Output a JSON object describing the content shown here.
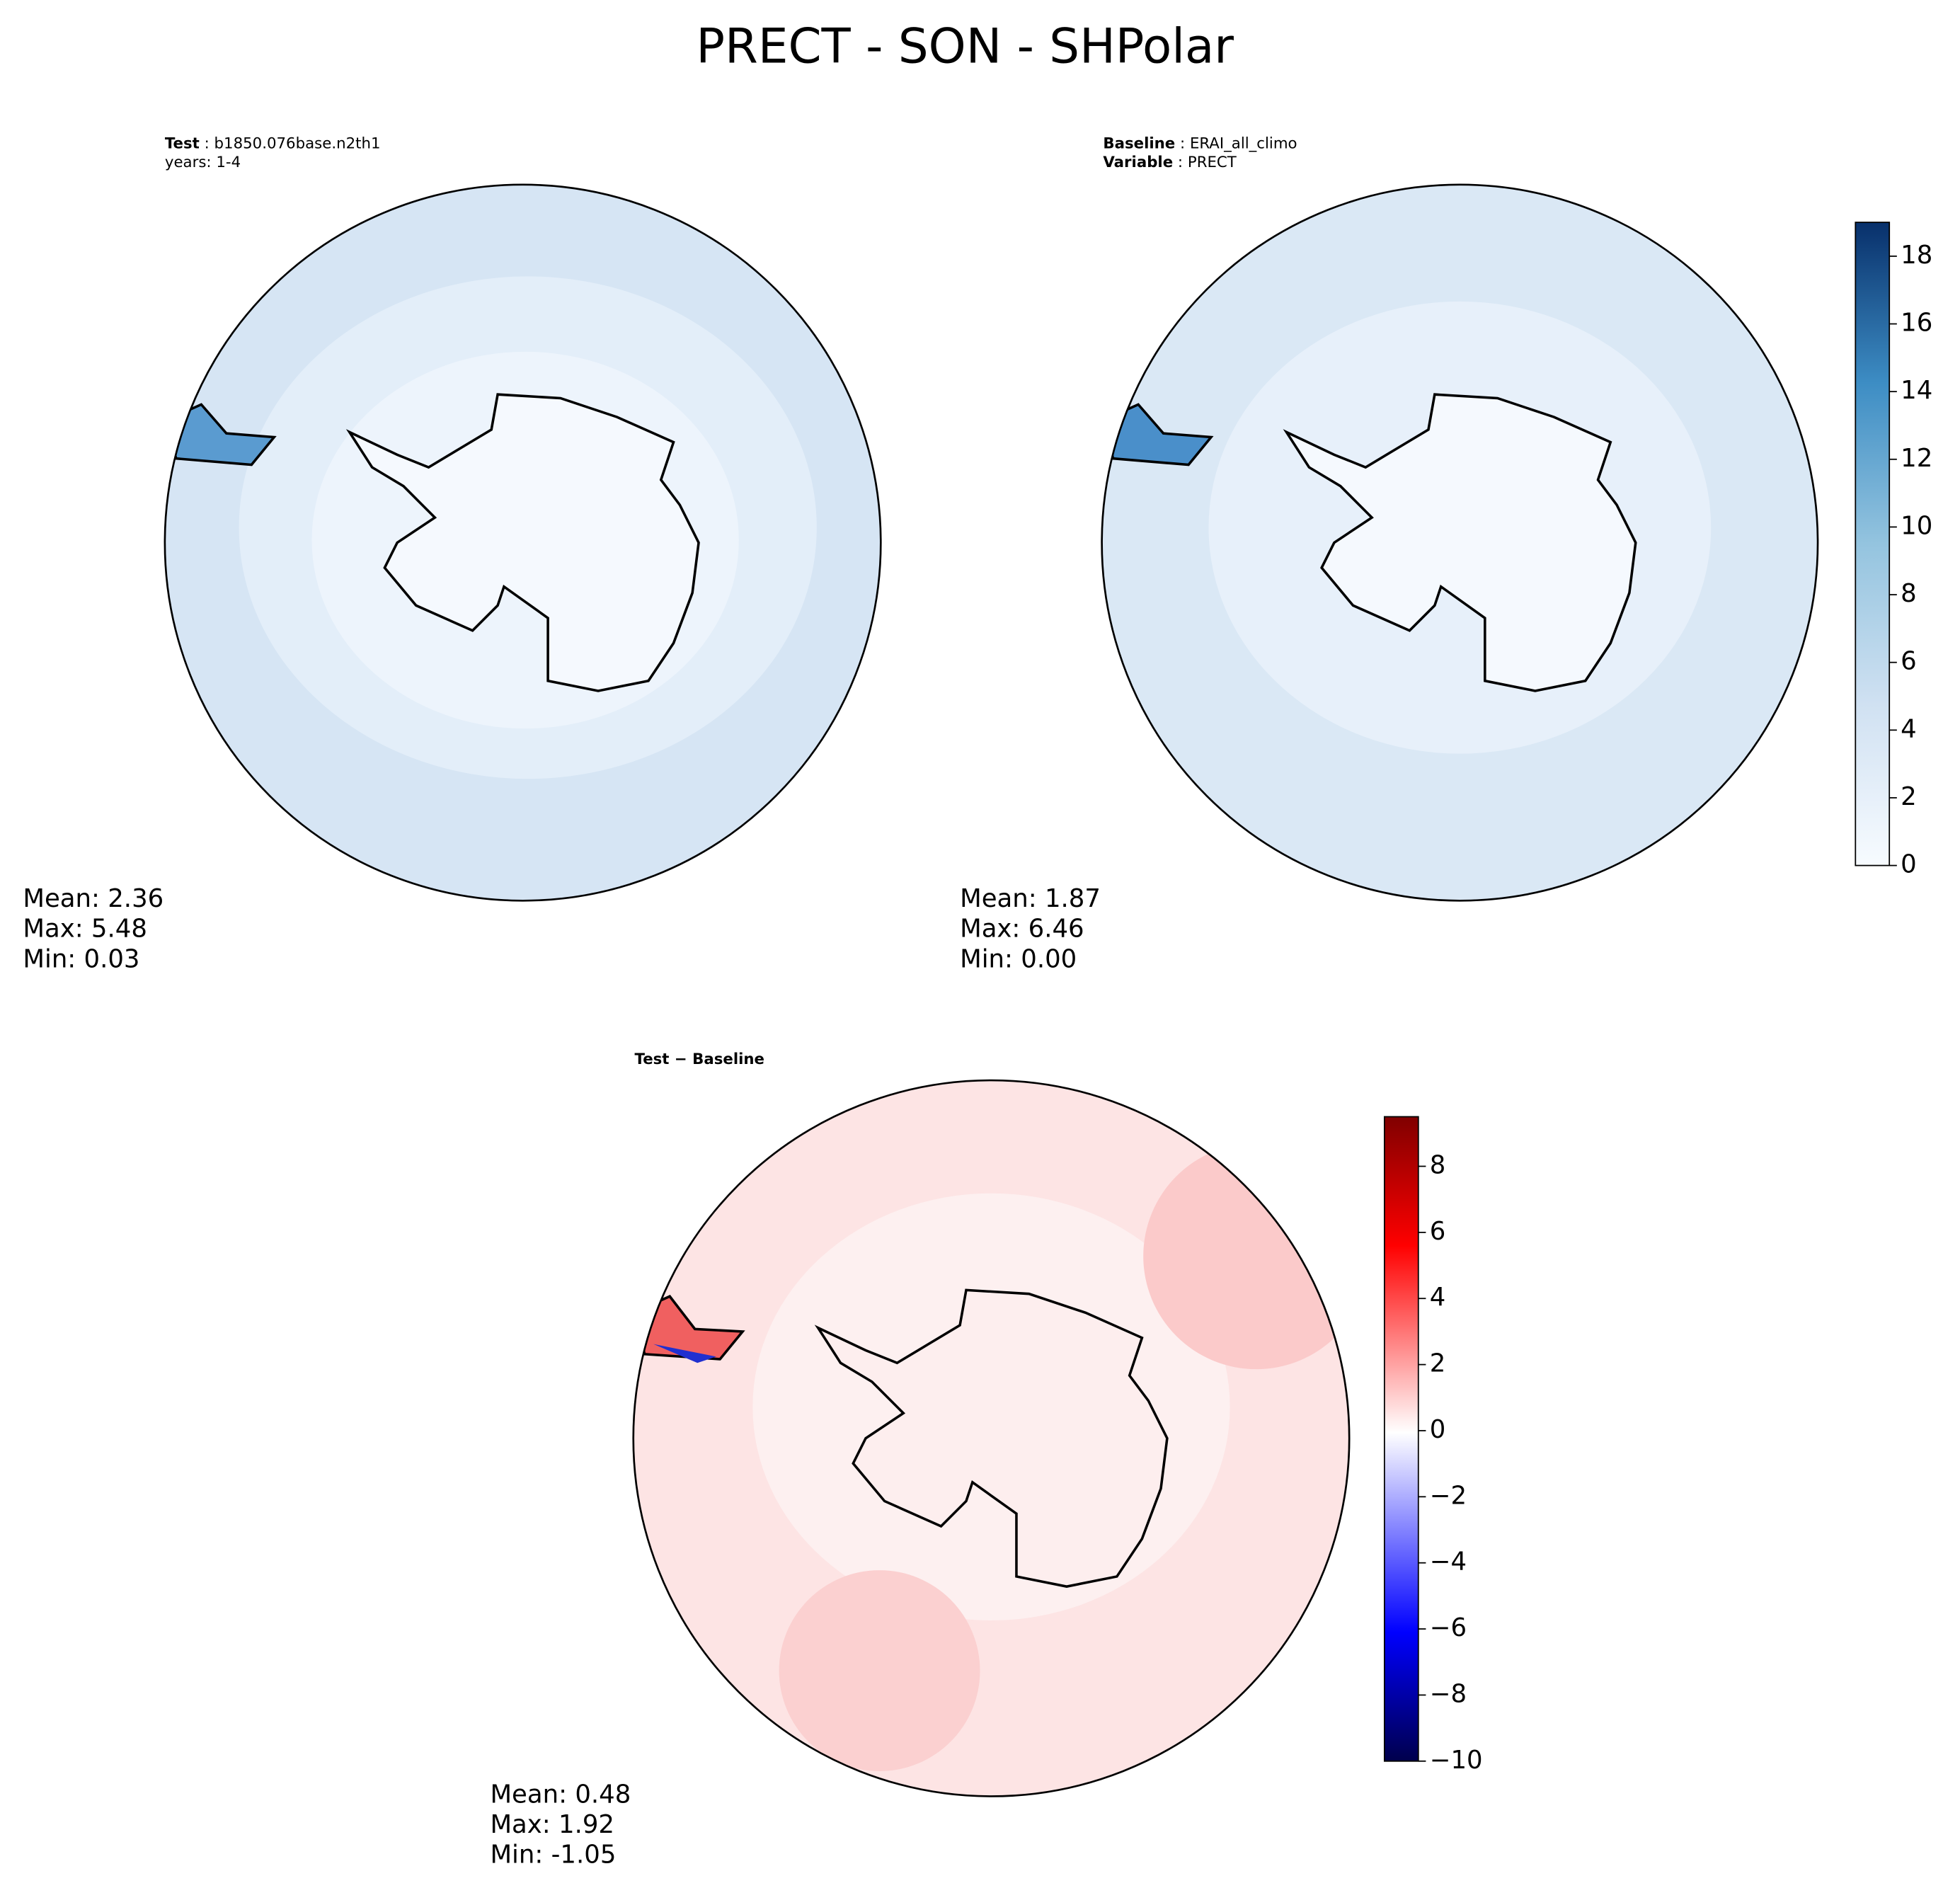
{
  "title": "PRECT - SON - SHPolar",
  "panels": [
    {
      "header": [
        {
          "label": "Test",
          "text": " : b1850.076base.n2th1"
        },
        {
          "text": "years: 1-4"
        }
      ],
      "stats": [
        "Mean:  2.36",
        "Max:  5.48",
        "Min:  0.03"
      ]
    },
    {
      "header": [
        {
          "label": "Baseline",
          "text": " : ERAI_all_climo"
        },
        {
          "label": "Variable",
          "text": " : PRECT"
        }
      ],
      "stats": [
        "Mean:  1.87",
        "Max:  6.46",
        "Min:  0.00"
      ]
    },
    {
      "header": [
        {
          "label": "Test − Baseline"
        }
      ],
      "stats": [
        "Mean:  0.48",
        "Max:  1.92",
        "Min: -1.05"
      ]
    }
  ],
  "colorbars": [
    {
      "lim": [
        0,
        19
      ],
      "ticks": [
        0,
        2,
        4,
        6,
        8,
        10,
        12,
        14,
        16,
        18
      ]
    },
    {
      "lim": [
        -10,
        9.5
      ],
      "ticks": [
        {
          "value": -10,
          "label": "−10"
        },
        {
          "value": -8,
          "label": "−8"
        },
        {
          "value": -6,
          "label": "−6"
        },
        {
          "value": -4,
          "label": "−4"
        },
        {
          "value": -2,
          "label": "−2"
        },
        0,
        2,
        4,
        6,
        8
      ]
    }
  ]
}
